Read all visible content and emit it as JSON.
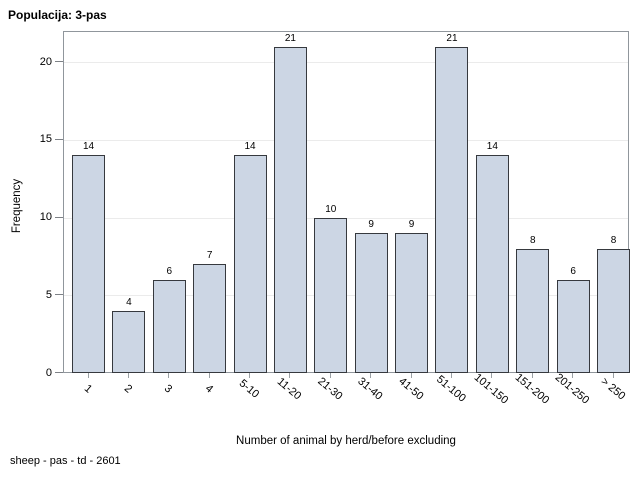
{
  "chart_data": {
    "type": "bar",
    "title": "Populacija: 3-pas",
    "categories": [
      "1",
      "2",
      "3",
      "4",
      "5-10",
      "11-20",
      "21-30",
      "31-40",
      "41-50",
      "51-100",
      "101-150",
      "151-200",
      "201-250",
      "> 250"
    ],
    "values": [
      14,
      4,
      6,
      7,
      14,
      21,
      10,
      9,
      9,
      21,
      14,
      8,
      6,
      8
    ],
    "xlabel": "Number of animal by herd/before excluding",
    "ylabel": "Frequency",
    "ylim": [
      0,
      22
    ],
    "yticks": [
      0,
      5,
      10,
      15,
      20
    ],
    "grid": "horizontal",
    "legend": "none",
    "footnote": "sheep - pas - td - 2601",
    "colors": {
      "bar_fill": "#ccd6e4",
      "bar_border": "#36393e",
      "frame": "#90969c",
      "gridline": "#ebebeb",
      "text": "#000000"
    }
  }
}
